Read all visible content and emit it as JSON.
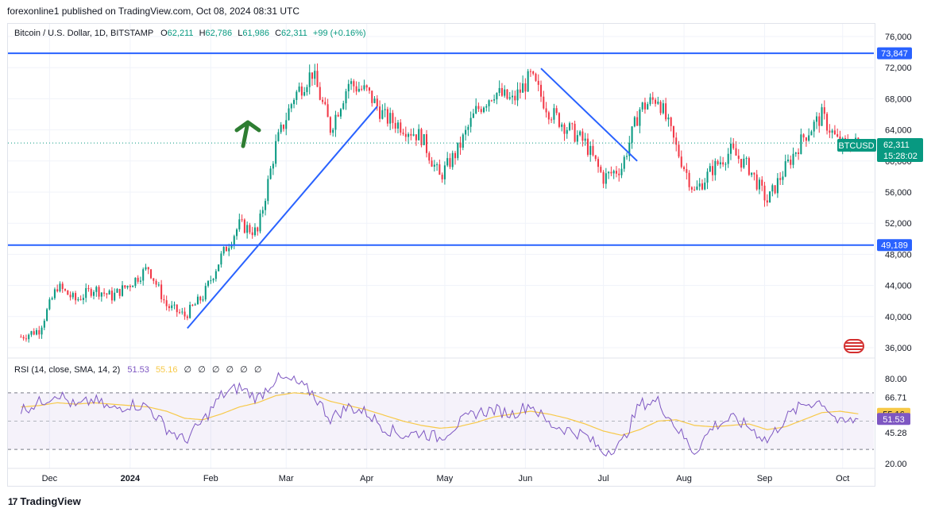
{
  "header": {
    "published": "forexonline1 published on TradingView.com, Oct 08, 2024 08:31 UTC"
  },
  "legend": {
    "symbol": "Bitcoin / U.S. Dollar, 1D, BITSTAMP",
    "o_label": "O",
    "o": "62,211",
    "h_label": "H",
    "h": "62,786",
    "l_label": "L",
    "l": "61,986",
    "c_label": "C",
    "c": "62,311",
    "change": "+99 (+0.16%)"
  },
  "rsi_legend": {
    "label": "RSI (14, close, SMA, 14, 2)",
    "rsi": "51.53",
    "sma": "55.16",
    "na_values": [
      "∅",
      "∅",
      "∅",
      "∅",
      "∅",
      "∅"
    ]
  },
  "price_labels": {
    "ticker": "BTCUSD",
    "last": "62,311",
    "countdown": "15:28:02",
    "resistance": "73,847",
    "support": "49,189"
  },
  "rsi_labels": {
    "upper": "66.71",
    "lower": "45.28",
    "sma": "55.16",
    "rsi": "51.53"
  },
  "footer": {
    "brand": "TradingView"
  },
  "colors": {
    "up": "#089981",
    "down": "#f23645",
    "levels": "#2962ff",
    "rsi": "#7e57c2",
    "sma": "#f7c948",
    "arrow": "#2e7d32"
  },
  "chart_data": [
    {
      "type": "candlestick",
      "title": "Bitcoin / U.S. Dollar, 1D, BITSTAMP",
      "x_ticks": [
        "Dec",
        "2024",
        "Feb",
        "Mar",
        "Apr",
        "May",
        "Jun",
        "Jul",
        "Aug",
        "Sep",
        "Oct"
      ],
      "y_ticks": [
        "76,000",
        "72,000",
        "68,000",
        "64,000",
        "60,000",
        "56,000",
        "52,000",
        "48,000",
        "44,000",
        "40,000",
        "36,000"
      ],
      "y_tick_values": [
        76000,
        72000,
        68000,
        64000,
        60000,
        56000,
        52000,
        48000,
        44000,
        40000,
        36000
      ],
      "ylim": [
        35000,
        77000
      ],
      "close_path": [
        [
          "2023-11-20",
          37400
        ],
        [
          "2023-11-27",
          38300
        ],
        [
          "2023-12-04",
          43900
        ],
        [
          "2023-12-11",
          42100
        ],
        [
          "2023-12-18",
          43600
        ],
        [
          "2023-12-25",
          42600
        ],
        [
          "2024-01-01",
          44200
        ],
        [
          "2024-01-08",
          46300
        ],
        [
          "2024-01-15",
          41400
        ],
        [
          "2024-01-22",
          40100
        ],
        [
          "2024-01-29",
          42600
        ],
        [
          "2024-02-05",
          47700
        ],
        [
          "2024-02-12",
          51800
        ],
        [
          "2024-02-19",
          50800
        ],
        [
          "2024-02-26",
          62000
        ],
        [
          "2024-03-04",
          68300
        ],
        [
          "2024-03-11",
          71400
        ],
        [
          "2024-03-18",
          64200
        ],
        [
          "2024-03-25",
          70000
        ],
        [
          "2024-04-01",
          68900
        ],
        [
          "2024-04-08",
          65600
        ],
        [
          "2024-04-15",
          64400
        ],
        [
          "2024-04-22",
          63100
        ],
        [
          "2024-04-29",
          57900
        ],
        [
          "2024-05-06",
          61400
        ],
        [
          "2024-05-13",
          66400
        ],
        [
          "2024-05-20",
          68900
        ],
        [
          "2024-05-27",
          67700
        ],
        [
          "2024-06-03",
          70800
        ],
        [
          "2024-06-10",
          66500
        ],
        [
          "2024-06-17",
          64300
        ],
        [
          "2024-06-24",
          62300
        ],
        [
          "2024-07-01",
          57800
        ],
        [
          "2024-07-08",
          59200
        ],
        [
          "2024-07-15",
          66700
        ],
        [
          "2024-07-22",
          68200
        ],
        [
          "2024-07-29",
          61700
        ],
        [
          "2024-08-05",
          56000
        ],
        [
          "2024-08-12",
          59000
        ],
        [
          "2024-08-19",
          61300
        ],
        [
          "2024-08-26",
          59100
        ],
        [
          "2024-09-02",
          54800
        ],
        [
          "2024-09-09",
          59100
        ],
        [
          "2024-09-16",
          63100
        ],
        [
          "2024-09-23",
          65800
        ],
        [
          "2024-09-30",
          62000
        ],
        [
          "2024-10-07",
          62311
        ]
      ],
      "horizontal_levels": [
        73847,
        49189
      ],
      "trendlines": [
        {
          "from": [
            "2024-01-23",
            38500
          ],
          "to": [
            "2024-04-05",
            67000
          ]
        },
        {
          "from": [
            "2024-06-07",
            71900
          ],
          "to": [
            "2024-07-14",
            60000
          ]
        }
      ]
    },
    {
      "type": "line",
      "title": "RSI (14, close, SMA, 14, 2)",
      "y_ticks": [
        "80.00",
        "66.71",
        "55.16",
        "51.53",
        "45.28",
        "20.00"
      ],
      "ylim": [
        20,
        85
      ],
      "bands": [
        70,
        30
      ],
      "series": [
        {
          "name": "RSI",
          "values": [
            58,
            63,
            70,
            60,
            65,
            58,
            62,
            60,
            45,
            36,
            50,
            68,
            74,
            66,
            80,
            78,
            70,
            52,
            60,
            56,
            45,
            40,
            42,
            38,
            48,
            56,
            58,
            55,
            62,
            48,
            44,
            40,
            28,
            34,
            62,
            64,
            46,
            28,
            46,
            52,
            46,
            36,
            52,
            62,
            64,
            48,
            51.53
          ]
        },
        {
          "name": "SMA",
          "values": [
            60,
            61,
            63,
            62,
            63,
            62,
            61,
            60,
            57,
            52,
            51,
            55,
            60,
            63,
            68,
            70,
            69,
            64,
            61,
            58,
            54,
            50,
            47,
            45,
            46,
            49,
            53,
            55,
            57,
            55,
            52,
            48,
            43,
            40,
            44,
            50,
            51,
            47,
            46,
            47,
            48,
            44,
            46,
            51,
            56,
            57,
            55.16
          ]
        }
      ]
    }
  ]
}
